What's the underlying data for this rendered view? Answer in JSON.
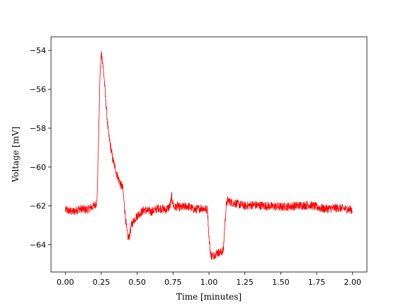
{
  "chart_data": {
    "type": "line",
    "title": "",
    "xlabel": "Time [minutes]",
    "ylabel": "Voltage [mV]",
    "xlim": [
      -0.1,
      2.1
    ],
    "ylim": [
      -65.4,
      -53.3
    ],
    "xticks": [
      0.0,
      0.25,
      0.5,
      0.75,
      1.0,
      1.25,
      1.5,
      1.75,
      2.0
    ],
    "xtick_labels": [
      "0.00",
      "0.25",
      "0.50",
      "0.75",
      "1.00",
      "1.25",
      "1.50",
      "1.75",
      "2.00"
    ],
    "yticks": [
      -64,
      -62,
      -60,
      -58,
      -56,
      -54
    ],
    "ytick_labels": [
      "−64",
      "−62",
      "−60",
      "−58",
      "−56",
      "−54"
    ],
    "grid": false,
    "legend": "none",
    "series": [
      {
        "color": "#ff0000",
        "noise_mV": 0.22,
        "x": [
          0.0,
          0.05,
          0.1,
          0.15,
          0.2,
          0.22,
          0.23,
          0.24,
          0.25,
          0.26,
          0.27,
          0.28,
          0.3,
          0.33,
          0.36,
          0.38,
          0.4,
          0.41,
          0.42,
          0.43,
          0.44,
          0.45,
          0.46,
          0.48,
          0.5,
          0.55,
          0.6,
          0.65,
          0.7,
          0.73,
          0.74,
          0.75,
          0.76,
          0.78,
          0.8,
          0.85,
          0.9,
          0.95,
          0.99,
          1.0,
          1.01,
          1.02,
          1.04,
          1.06,
          1.08,
          1.1,
          1.11,
          1.12,
          1.13,
          1.15,
          1.2,
          1.25,
          1.3,
          1.4,
          1.5,
          1.6,
          1.7,
          1.8,
          1.9,
          2.0
        ],
        "y": [
          -62.2,
          -62.3,
          -62.15,
          -62.2,
          -62.0,
          -61.8,
          -59.0,
          -55.5,
          -54.1,
          -54.6,
          -55.4,
          -56.5,
          -58.3,
          -59.6,
          -60.4,
          -60.8,
          -61.1,
          -61.9,
          -62.7,
          -63.4,
          -63.7,
          -63.4,
          -63.0,
          -62.7,
          -62.5,
          -62.2,
          -62.3,
          -62.1,
          -62.2,
          -62.0,
          -61.5,
          -61.9,
          -62.1,
          -62.0,
          -62.1,
          -62.0,
          -62.2,
          -62.1,
          -62.2,
          -63.6,
          -64.4,
          -64.6,
          -64.5,
          -64.4,
          -64.4,
          -64.3,
          -63.0,
          -62.0,
          -61.7,
          -61.8,
          -61.9,
          -62.0,
          -61.95,
          -62.0,
          -62.05,
          -62.0,
          -61.95,
          -62.15,
          -62.1,
          -62.2
        ]
      }
    ]
  }
}
